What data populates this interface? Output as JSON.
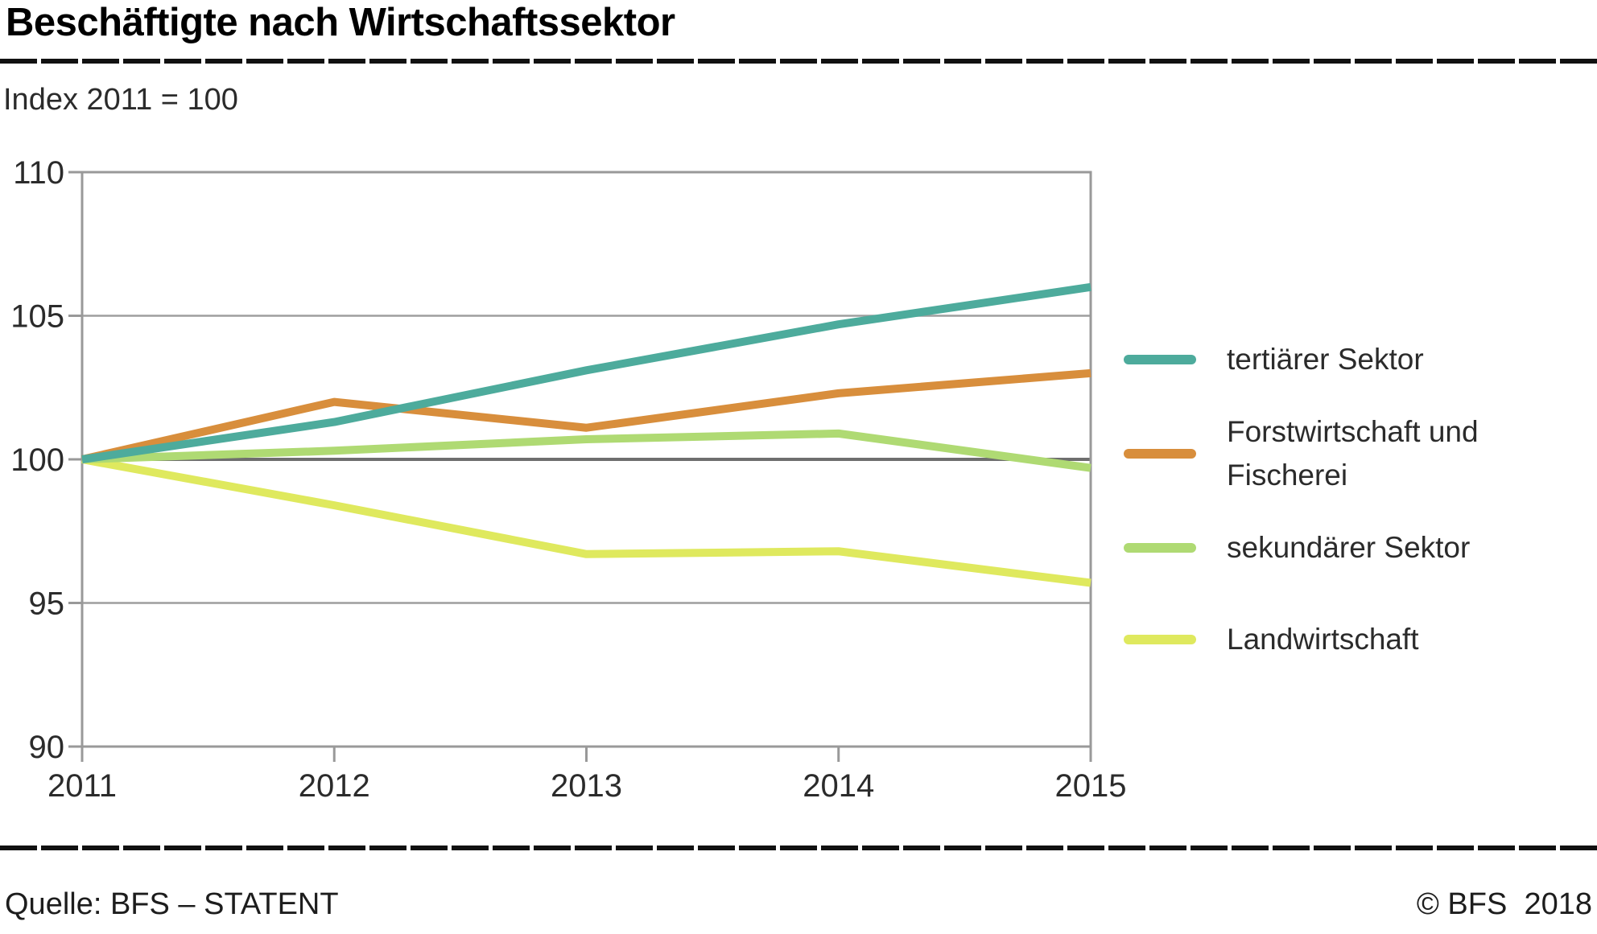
{
  "title": "Beschäftigte nach Wirtschaftssektor",
  "subtitle": "Index 2011 = 100",
  "footer": {
    "source": "Quelle: BFS – STATENT",
    "copyright": "© BFS  2018"
  },
  "colors": {
    "axis": "#999999",
    "grid_light": "#9e9e9e",
    "grid_dark": "#6e6e6e",
    "tick_text": "#2b2b2b",
    "rule": "#111111"
  },
  "chart_data": {
    "type": "line",
    "x": [
      2011,
      2012,
      2013,
      2014,
      2015
    ],
    "series": [
      {
        "name": "tertiärer Sektor",
        "color": "#4dab9c",
        "values": [
          100,
          101.3,
          103.1,
          104.7,
          106.0
        ]
      },
      {
        "name": "Forstwirtschaft und Fischerei",
        "color": "#d88e3c",
        "values": [
          100,
          102.0,
          101.1,
          102.3,
          103.0
        ]
      },
      {
        "name": "sekundärer Sektor",
        "color": "#afda73",
        "values": [
          100,
          100.3,
          100.7,
          100.9,
          99.7
        ]
      },
      {
        "name": "Landwirtschaft",
        "color": "#dfe95e",
        "values": [
          100,
          98.4,
          96.7,
          96.8,
          95.7
        ]
      }
    ],
    "title": "Beschäftigte nach Wirtschaftssektor",
    "xlabel": "",
    "ylabel": "Index 2011 = 100",
    "ylim": [
      90,
      110
    ],
    "yticks": [
      90,
      95,
      100,
      105,
      110
    ],
    "grid": "horizontal",
    "emphasized_gridline": 100,
    "legend_position": "right"
  },
  "legend": {
    "items": [
      {
        "lines": [
          "tertiärer Sektor",
          ""
        ]
      },
      {
        "lines": [
          "Forstwirtschaft und",
          "Fischerei"
        ]
      },
      {
        "lines": [
          "sekundärer Sektor",
          ""
        ]
      },
      {
        "lines": [
          "Landwirtschaft",
          ""
        ]
      }
    ]
  }
}
